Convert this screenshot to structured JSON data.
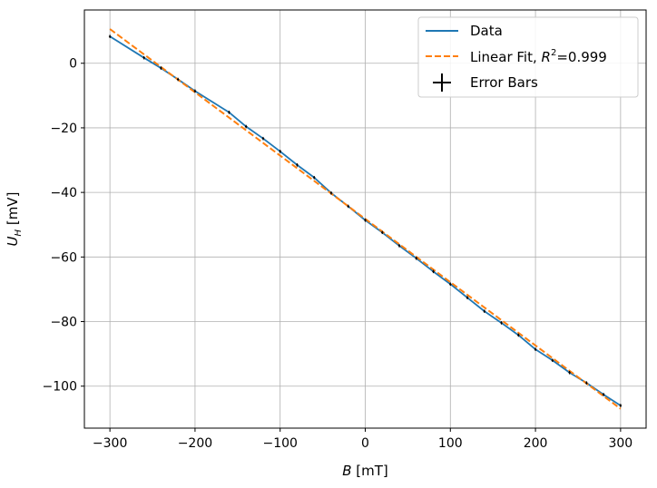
{
  "chart_data": {
    "type": "line",
    "xlabel": {
      "var": "B",
      "unit": " [mT]"
    },
    "ylabel": {
      "var": "U",
      "sub": "H",
      "unit": " [mV]"
    },
    "xlim": [
      -330,
      330
    ],
    "ylim": [
      -113,
      16.5
    ],
    "xticks": [
      -300,
      -200,
      -100,
      0,
      100,
      200,
      300
    ],
    "xtick_labels": [
      "−300",
      "−200",
      "−100",
      "0",
      "100",
      "200",
      "300"
    ],
    "yticks": [
      0,
      -20,
      -40,
      -60,
      -80,
      -100
    ],
    "ytick_labels": [
      "0",
      "−20",
      "−40",
      "−60",
      "−80",
      "−100"
    ],
    "grid": true,
    "legend_position": "top-right",
    "series": [
      {
        "name": "Data",
        "color": "#1f77b4",
        "style": "solid",
        "x": [
          -300,
          -260,
          -240,
          -220,
          -200,
          -160,
          -140,
          -120,
          -100,
          -80,
          -60,
          -40,
          -20,
          0,
          20,
          40,
          60,
          80,
          100,
          120,
          140,
          160,
          180,
          200,
          220,
          240,
          260,
          280,
          300
        ],
        "y": [
          8.3,
          1.7,
          -1.5,
          -5.0,
          -8.6,
          -15.2,
          -19.6,
          -23.3,
          -27.3,
          -31.5,
          -35.4,
          -40.2,
          -44.3,
          -48.6,
          -52.4,
          -56.5,
          -60.4,
          -64.5,
          -68.4,
          -72.6,
          -76.8,
          -80.4,
          -84.2,
          -88.6,
          -92.0,
          -95.8,
          -99.0,
          -102.6,
          -106.0
        ],
        "error": 0.5
      },
      {
        "name": "Linear Fit, ",
        "r2_value": "=0.999",
        "color": "#ff7f0e",
        "style": "dashed",
        "x": [
          -300,
          300
        ],
        "y": [
          10.6,
          -107.0
        ]
      },
      {
        "name": "Error Bars",
        "color": "#000000",
        "style": "marker-plus"
      }
    ]
  }
}
